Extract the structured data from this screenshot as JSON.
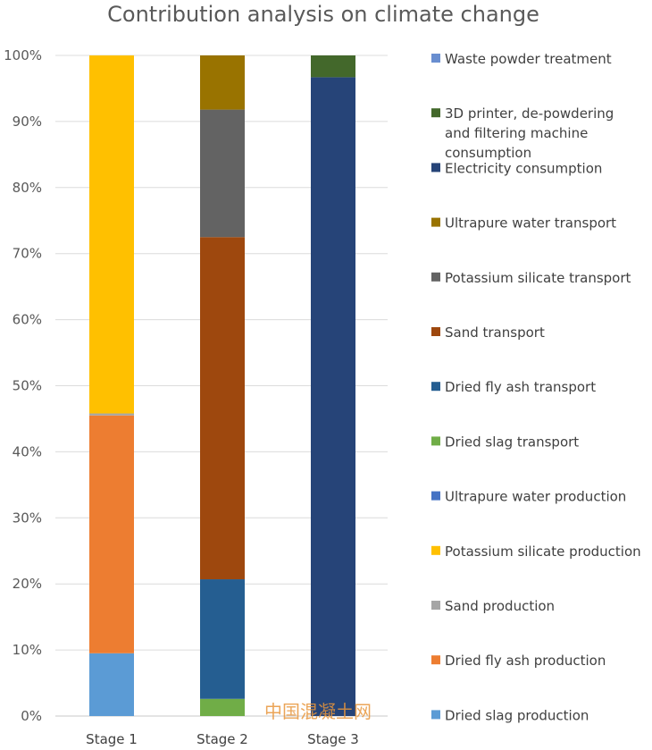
{
  "chart_data": {
    "type": "bar",
    "stacked": true,
    "normalized": true,
    "title": "Contribution analysis on climate change",
    "xlabel": "",
    "ylabel": "",
    "ylim": [
      0,
      100
    ],
    "yticks": [
      "0%",
      "10%",
      "20%",
      "30%",
      "40%",
      "50%",
      "60%",
      "70%",
      "80%",
      "90%",
      "100%"
    ],
    "grid": true,
    "legend_position": "right",
    "categories": [
      "Stage 1",
      "Stage 2",
      "Stage 3"
    ],
    "series": [
      {
        "name": "Dried slag production",
        "color": "#5b9bd5",
        "values": [
          9.5,
          0,
          0
        ]
      },
      {
        "name": "Dried fly ash production",
        "color": "#ed7d31",
        "values": [
          36.0,
          0,
          0
        ]
      },
      {
        "name": "Sand production",
        "color": "#a5a5a5",
        "values": [
          0.3,
          0,
          0
        ]
      },
      {
        "name": "Potassium silicate production",
        "color": "#ffc000",
        "values": [
          54.2,
          0,
          0
        ]
      },
      {
        "name": "Ultrapure water  production",
        "color": "#4472c4",
        "values": [
          0,
          0,
          0
        ]
      },
      {
        "name": "Dried slag transport",
        "color": "#70ad47",
        "values": [
          0,
          2.6,
          0
        ]
      },
      {
        "name": "Dried fly ash transport",
        "color": "#255e91",
        "values": [
          0,
          18.1,
          0
        ]
      },
      {
        "name": "Sand transport",
        "color": "#9e480e",
        "values": [
          0,
          51.8,
          0
        ]
      },
      {
        "name": "Potassium silicate transport",
        "color": "#636363",
        "values": [
          0,
          19.3,
          0
        ]
      },
      {
        "name": "Ultrapure water  transport",
        "color": "#997300",
        "values": [
          0,
          8.2,
          0
        ]
      },
      {
        "name": "Electricity consumption",
        "color": "#264478",
        "values": [
          0,
          0,
          96.7
        ]
      },
      {
        "name": "3D printer, de-powdering and filtering machine consumption",
        "color": "#43682b",
        "values": [
          0,
          0,
          3.3
        ]
      },
      {
        "name": "Waste powder treatment",
        "color": "#698ed0",
        "values": [
          0,
          0,
          0
        ]
      }
    ],
    "legend_lines": [
      [
        "Waste powder treatment"
      ],
      [
        "3D printer, de-powdering",
        "and filtering machine",
        "consumption"
      ],
      [
        "Electricity consumption"
      ],
      [
        "Ultrapure water  transport"
      ],
      [
        "Potassium silicate transport"
      ],
      [
        "Sand transport"
      ],
      [
        "Dried fly ash transport"
      ],
      [
        "Dried slag transport"
      ],
      [
        "Ultrapure water  production"
      ],
      [
        "Potassium silicate production"
      ],
      [
        "Sand production"
      ],
      [
        "Dried fly ash production"
      ],
      [
        "Dried slag production"
      ]
    ]
  },
  "watermark": "中国混凝土网"
}
